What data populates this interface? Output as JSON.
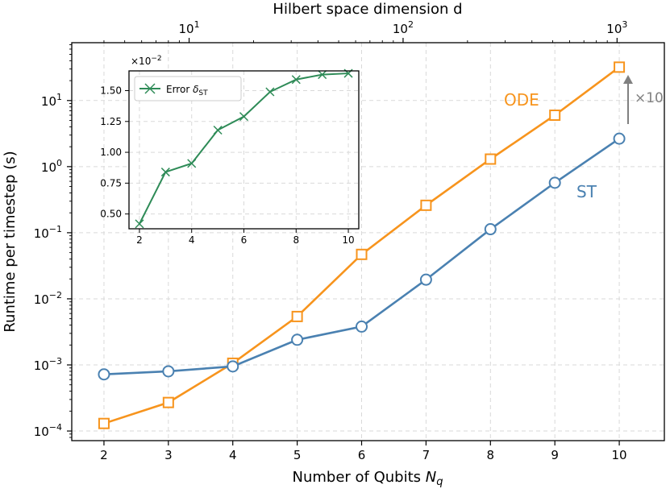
{
  "chart_data": [
    {
      "type": "line",
      "title": "",
      "xlabel": "Number of Qubits",
      "xlabel_var": "N",
      "xlabel_sub": "q",
      "ylabel": "Runtime per timestep (s)",
      "yscale": "log",
      "xlim": [
        1.5,
        10.7
      ],
      "ylim": [
        7.15e-05,
        75
      ],
      "x_ticks": [
        2,
        3,
        4,
        5,
        6,
        7,
        8,
        9,
        10
      ],
      "y_ticks": [
        {
          "value": 0.0001,
          "base": "10",
          "exp": "−4"
        },
        {
          "value": 0.001,
          "base": "10",
          "exp": "−3"
        },
        {
          "value": 0.01,
          "base": "10",
          "exp": "−2"
        },
        {
          "value": 0.1,
          "base": "10",
          "exp": "−1"
        },
        {
          "value": 1,
          "base": "10",
          "exp": "0"
        },
        {
          "value": 10,
          "base": "10",
          "exp": "1"
        }
      ],
      "top_axis": {
        "label": "Hilbert space dimension d",
        "scale": "log2-of-d",
        "ticks": [
          {
            "value": 10,
            "base": "10",
            "exp": "1"
          },
          {
            "value": 100,
            "base": "10",
            "exp": "2"
          },
          {
            "value": 1000,
            "base": "10",
            "exp": "3"
          }
        ]
      },
      "series": [
        {
          "name": "ODE",
          "color": "#f7941d",
          "marker": "square",
          "x": [
            2,
            3,
            4,
            5,
            6,
            7,
            8,
            9,
            10
          ],
          "values": [
            0.00013,
            0.00027,
            0.00106,
            0.0054,
            0.047,
            0.26,
            1.3,
            6.0,
            32
          ]
        },
        {
          "name": "ST",
          "color": "#4a81b1",
          "marker": "circle",
          "x": [
            2,
            3,
            4,
            5,
            6,
            7,
            8,
            9,
            10
          ],
          "values": [
            0.00072,
            0.0008,
            0.00095,
            0.0024,
            0.0038,
            0.0195,
            0.113,
            0.57,
            2.65
          ]
        }
      ],
      "annotations": [
        {
          "text": "ODE",
          "color": "#f7941d"
        },
        {
          "text": "ST",
          "color": "#4a81b1"
        },
        {
          "text": "×10",
          "color": "#808080"
        }
      ]
    },
    {
      "type": "line",
      "title": "",
      "xlim": [
        1.6,
        10.4
      ],
      "ylim": [
        0.38,
        1.66
      ],
      "x_ticks": [
        2,
        4,
        6,
        8,
        10
      ],
      "y_ticks": [
        0.5,
        0.75,
        1.0,
        1.25,
        1.5
      ],
      "y_tick_labels": [
        "0.50",
        "0.75",
        "1.00",
        "1.25",
        "1.50"
      ],
      "y_multiplier": {
        "base": "×10",
        "exp": "−2"
      },
      "legend": {
        "placement": "top-left",
        "text": "Error",
        "symbol": "δ",
        "sub": "ST"
      },
      "series": [
        {
          "name": "Error δST",
          "color": "#2e8b57",
          "marker": "x",
          "x": [
            2,
            3,
            4,
            5,
            6,
            7,
            8,
            9,
            10
          ],
          "values": [
            0.42,
            0.84,
            0.91,
            1.18,
            1.29,
            1.49,
            1.59,
            1.63,
            1.64
          ]
        }
      ]
    }
  ]
}
